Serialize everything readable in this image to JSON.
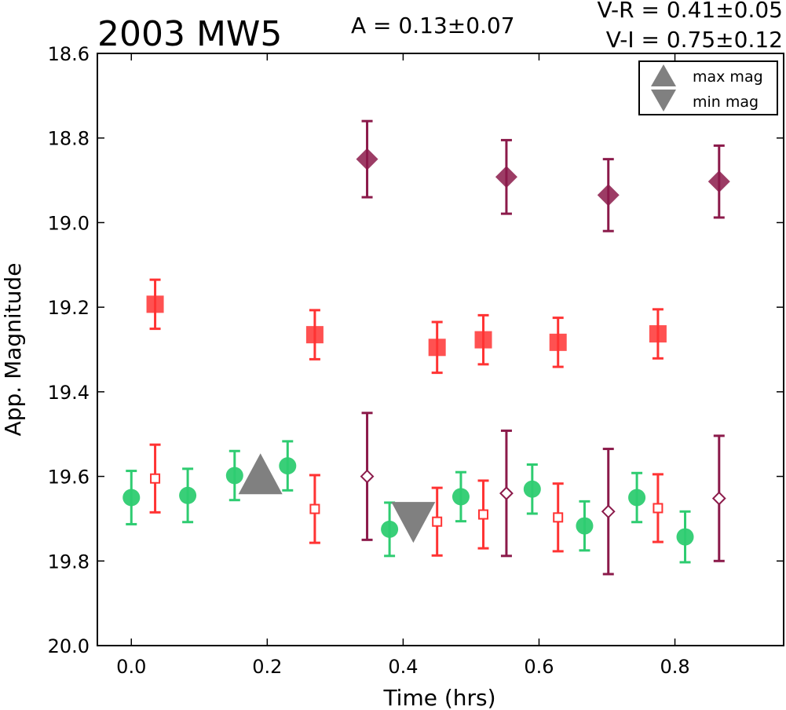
{
  "chart_data": {
    "type": "scatter",
    "title": "2003 MW5",
    "amplitude_label": "A  = 0.13±0.07",
    "color_labels": [
      "V-R = 0.41±0.05",
      "V-I  = 0.75±0.12"
    ],
    "xlabel": "Time (hrs)",
    "ylabel": "App. Magnitude",
    "xlim": [
      -0.05,
      0.96
    ],
    "ylim": [
      20.0,
      18.6
    ],
    "y_inverted": true,
    "grid": false,
    "legend_placement": "top-right",
    "x_ticks": [
      "0.0",
      "0.2",
      "0.4",
      "0.6",
      "0.8"
    ],
    "y_ticks": [
      "18.6",
      "18.8",
      "19.0",
      "19.2",
      "19.4",
      "19.6",
      "19.8",
      "20.0"
    ],
    "legend": [
      {
        "marker": "triangle-up",
        "label": "max mag"
      },
      {
        "marker": "triangle-down",
        "label": "min mag"
      }
    ],
    "colors": {
      "green": "#2ecc71",
      "red": "#ff3333",
      "purple": "#8b1a4a",
      "gray": "#808080"
    },
    "series": [
      {
        "marker": "circle",
        "color": "#2ecc71",
        "filled": true,
        "points": [
          {
            "x": 0.0,
            "y": 19.65,
            "err": 0.063
          },
          {
            "x": 0.083,
            "y": 19.645,
            "err": 0.063
          },
          {
            "x": 0.152,
            "y": 19.598,
            "err": 0.058
          },
          {
            "x": 0.23,
            "y": 19.575,
            "err": 0.058
          },
          {
            "x": 0.38,
            "y": 19.725,
            "err": 0.063
          },
          {
            "x": 0.485,
            "y": 19.648,
            "err": 0.058
          },
          {
            "x": 0.59,
            "y": 19.63,
            "err": 0.058
          },
          {
            "x": 0.667,
            "y": 19.717,
            "err": 0.058
          },
          {
            "x": 0.744,
            "y": 19.65,
            "err": 0.058
          },
          {
            "x": 0.815,
            "y": 19.743,
            "err": 0.06
          }
        ]
      },
      {
        "marker": "square",
        "color": "#ff3333",
        "filled": true,
        "points": [
          {
            "x": 0.035,
            "y": 19.193,
            "err": 0.058
          },
          {
            "x": 0.27,
            "y": 19.265,
            "err": 0.058
          },
          {
            "x": 0.45,
            "y": 19.295,
            "err": 0.06
          },
          {
            "x": 0.518,
            "y": 19.277,
            "err": 0.058
          },
          {
            "x": 0.628,
            "y": 19.283,
            "err": 0.058
          },
          {
            "x": 0.775,
            "y": 19.263,
            "err": 0.058
          }
        ]
      },
      {
        "marker": "diamond",
        "color": "#8b1a4a",
        "filled": true,
        "points": [
          {
            "x": 0.347,
            "y": 18.85,
            "err": 0.09
          },
          {
            "x": 0.552,
            "y": 18.892,
            "err": 0.087
          },
          {
            "x": 0.702,
            "y": 18.935,
            "err": 0.085
          },
          {
            "x": 0.865,
            "y": 18.903,
            "err": 0.085
          }
        ]
      },
      {
        "marker": "square",
        "color": "#ff3333",
        "filled": false,
        "points": [
          {
            "x": 0.035,
            "y": 19.605,
            "err": 0.08
          },
          {
            "x": 0.27,
            "y": 19.677,
            "err": 0.08
          },
          {
            "x": 0.45,
            "y": 19.707,
            "err": 0.08
          },
          {
            "x": 0.518,
            "y": 19.69,
            "err": 0.08
          },
          {
            "x": 0.628,
            "y": 19.697,
            "err": 0.08
          },
          {
            "x": 0.775,
            "y": 19.675,
            "err": 0.08
          }
        ]
      },
      {
        "marker": "diamond",
        "color": "#8b1a4a",
        "filled": false,
        "points": [
          {
            "x": 0.347,
            "y": 19.6,
            "err": 0.15
          },
          {
            "x": 0.552,
            "y": 19.64,
            "err": 0.148
          },
          {
            "x": 0.702,
            "y": 19.683,
            "err": 0.148
          },
          {
            "x": 0.865,
            "y": 19.652,
            "err": 0.148
          }
        ]
      },
      {
        "marker": "triangle-up",
        "color": "#808080",
        "filled": true,
        "points": [
          {
            "x": 0.19,
            "y": 19.605
          }
        ]
      },
      {
        "marker": "triangle-down",
        "color": "#808080",
        "filled": true,
        "points": [
          {
            "x": 0.415,
            "y": 19.705
          }
        ]
      }
    ]
  }
}
